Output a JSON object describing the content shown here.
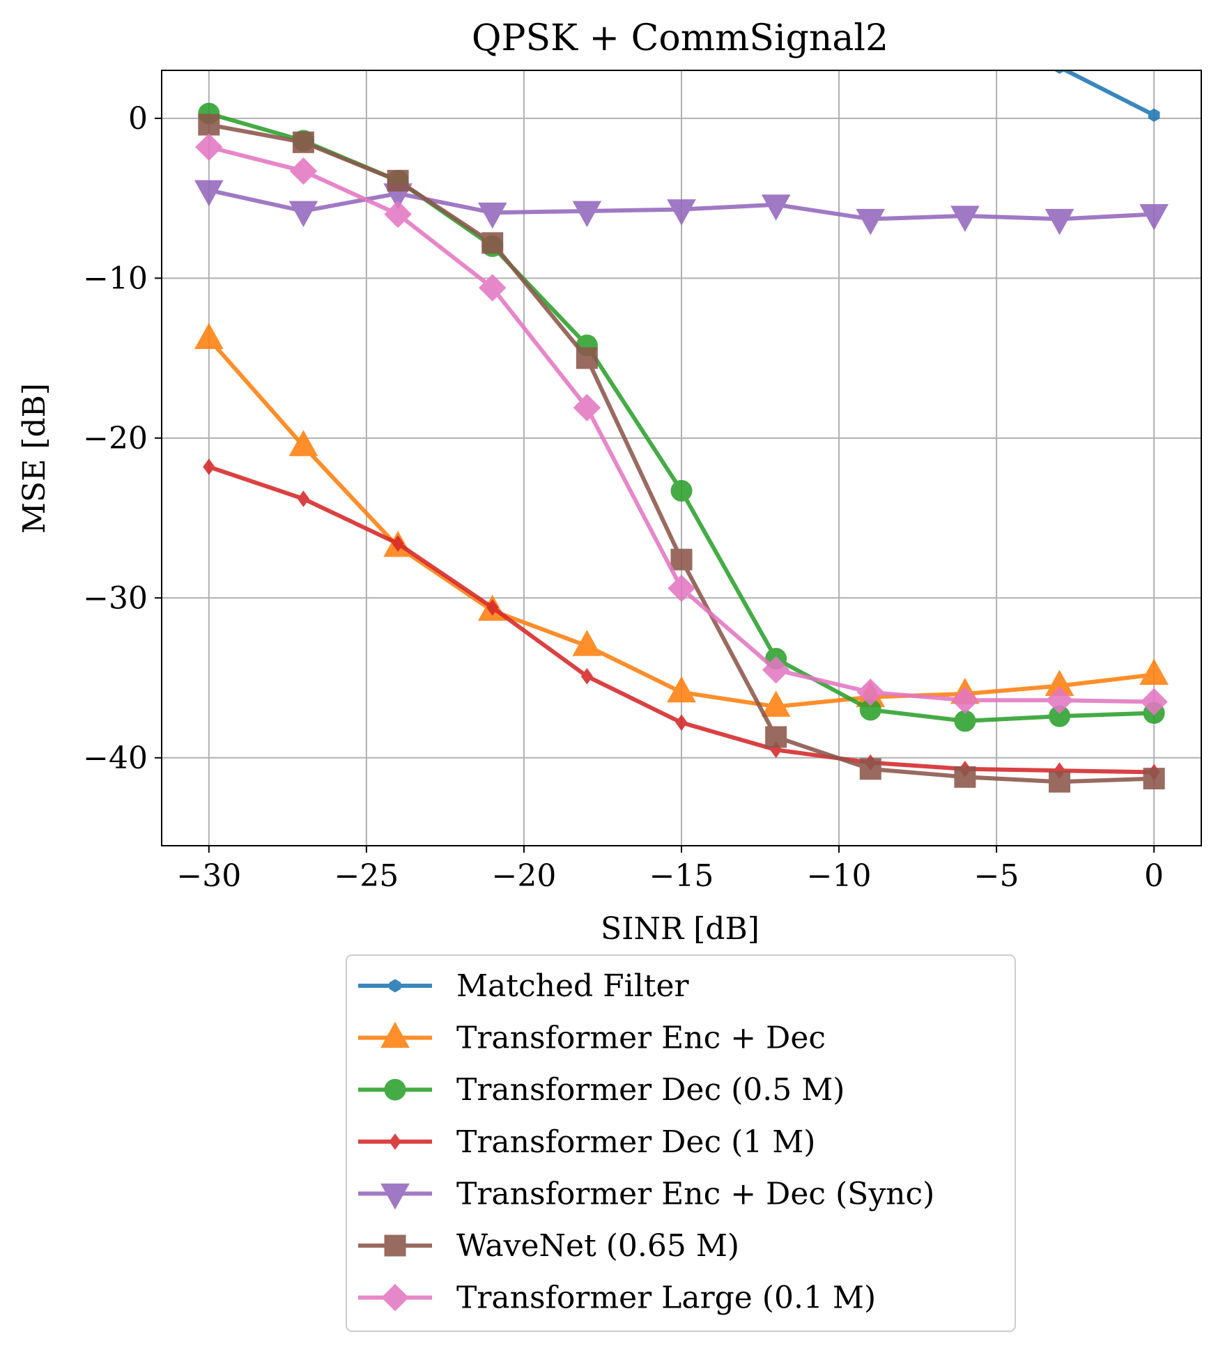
{
  "chart_data": {
    "type": "line",
    "title": "QPSK + CommSignal2",
    "xlabel": "SINR [dB]",
    "ylabel": "MSE [dB]",
    "x": [
      -30,
      -27,
      -24,
      -21,
      -18,
      -15,
      -12,
      -9,
      -6,
      -3,
      0
    ],
    "xlim": [
      -31.5,
      1.5
    ],
    "ylim": [
      -45.5,
      3
    ],
    "xticks": [
      -30,
      -25,
      -20,
      -15,
      -10,
      -5,
      0
    ],
    "yticks": [
      0,
      -10,
      -20,
      -30,
      -40
    ],
    "xtick_labels": [
      "−30",
      "−25",
      "−20",
      "−15",
      "−10",
      "−5",
      "0"
    ],
    "ytick_labels": [
      "0",
      "−10",
      "−20",
      "−30",
      "−40"
    ],
    "grid": true,
    "legend_position": "below-center",
    "series": [
      {
        "name": "Matched Filter",
        "color": "#1f77b4",
        "marker": "hexagon",
        "x": [
          -3,
          0
        ],
        "values": [
          3.2,
          0.2
        ]
      },
      {
        "name": "Transformer Enc + Dec",
        "color": "#ff7f0e",
        "marker": "triangle-up",
        "values": [
          -13.8,
          -20.5,
          -26.8,
          -30.8,
          -33,
          -35.9,
          -36.8,
          -36.2,
          -36,
          -35.5,
          -34.8
        ]
      },
      {
        "name": "Transformer Dec (0.5 M)",
        "color": "#2ca02c",
        "marker": "circle",
        "values": [
          0.3,
          -1.4,
          -3.9,
          -8,
          -14.2,
          -23.3,
          -33.8,
          -37,
          -37.7,
          -37.4,
          -37.2
        ]
      },
      {
        "name": "Transformer Dec (1 M)",
        "color": "#d62728",
        "marker": "diamond-thin",
        "values": [
          -21.8,
          -23.8,
          -26.6,
          -30.6,
          -34.9,
          -37.8,
          -39.5,
          -40.3,
          -40.7,
          -40.8,
          -40.9
        ]
      },
      {
        "name": "Transformer Enc + Dec (Sync)",
        "color": "#9467bd",
        "marker": "triangle-down",
        "values": [
          -4.5,
          -5.8,
          -4.7,
          -5.9,
          -5.8,
          -5.7,
          -5.4,
          -6.3,
          -6.1,
          -6.3,
          -6
        ]
      },
      {
        "name": "WaveNet (0.65 M)",
        "color": "#8c564b",
        "marker": "square",
        "values": [
          -0.4,
          -1.5,
          -3.9,
          -7.8,
          -15,
          -27.6,
          -38.7,
          -40.7,
          -41.2,
          -41.5,
          -41.3
        ]
      },
      {
        "name": "Transformer Large (0.1 M)",
        "color": "#e377c2",
        "marker": "diamond",
        "values": [
          -1.8,
          -3.3,
          -6,
          -10.6,
          -18.1,
          -29.4,
          -34.5,
          -35.9,
          -36.4,
          -36.4,
          -36.5
        ]
      }
    ]
  }
}
